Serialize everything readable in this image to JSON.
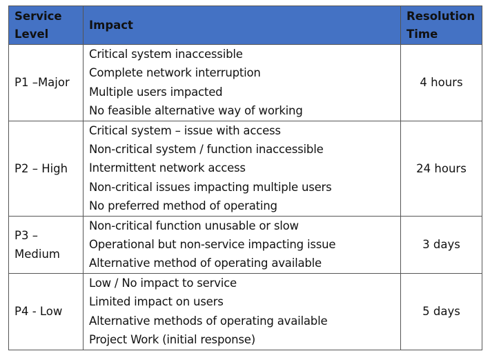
{
  "header": {
    "service_level": "Service Level",
    "impact": "Impact",
    "resolution_time": "Resolution Time"
  },
  "header_color": "#4472C4",
  "rows": [
    {
      "level": "P1 –Major",
      "impacts": [
        "Critical system inaccessible",
        "Complete network interruption",
        "Multiple users impacted",
        "No feasible alternative way of working"
      ],
      "time": "4 hours"
    },
    {
      "level": "P2 – High",
      "impacts": [
        "Critical system – issue with access",
        "Non-critical system / function inaccessible",
        "Intermittent network access",
        "Non-critical issues impacting multiple users",
        "No preferred method of operating"
      ],
      "time": "24 hours"
    },
    {
      "level": "P3 – Medium",
      "impacts": [
        "Non-critical function unusable or slow",
        "Operational but non-service impacting issue",
        "Alternative method of operating available"
      ],
      "time": "3 days"
    },
    {
      "level": "P4 - Low",
      "impacts": [
        "Low / No impact to service",
        "Limited impact on users",
        "Alternative methods of operating available",
        "Project Work (initial response)"
      ],
      "time": "5 days"
    }
  ]
}
